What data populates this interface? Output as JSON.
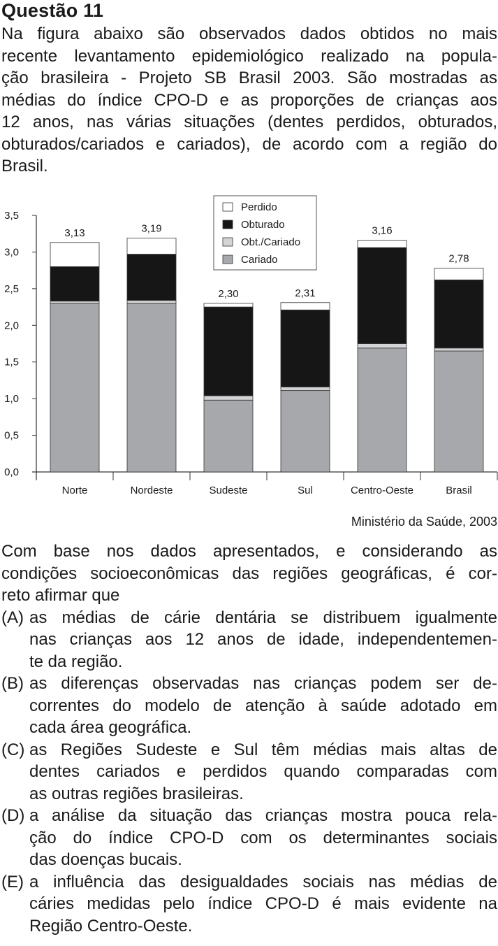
{
  "question_title": "Questão  11",
  "intro_lines": [
    "Na figura abaixo são observados dados obtidos no mais",
    "recente levantamento epidemiológico realizado na popula-",
    "ção brasileira - Projeto SB Brasil 2003. São mostradas as",
    "médias do índice CPO-D e as proporções de crianças aos",
    "12 anos, nas várias situações (dentes perdidos, obturados,",
    "obturados/cariados e cariados), de acordo com a região do",
    "Brasil."
  ],
  "chart_data": {
    "type": "bar",
    "stacked": true,
    "categories": [
      "Norte",
      "Nordeste",
      "Sudeste",
      "Sul",
      "Centro-Oeste",
      "Brasil"
    ],
    "series": [
      {
        "name": "Cariado",
        "values": [
          2.3,
          2.3,
          0.98,
          1.11,
          1.69,
          1.65
        ],
        "color": "#a7a8ab"
      },
      {
        "name": "Obt./Cariado",
        "values": [
          0.03,
          0.04,
          0.06,
          0.05,
          0.06,
          0.04
        ],
        "color": "#d3d4d6"
      },
      {
        "name": "Obturado",
        "values": [
          0.47,
          0.63,
          1.21,
          1.05,
          1.31,
          0.93
        ],
        "color": "#161616"
      },
      {
        "name": "Perdido",
        "values": [
          0.33,
          0.22,
          0.05,
          0.1,
          0.1,
          0.16
        ],
        "color": "#ffffff"
      }
    ],
    "totals": [
      "3,13",
      "3,19",
      "2,30",
      "2,31",
      "3,16",
      "2,78"
    ],
    "y_ticks": [
      "0,0",
      "0,5",
      "1,0",
      "1,5",
      "2,0",
      "2,5",
      "3,0",
      "3,5"
    ],
    "ylim": [
      0,
      3.5
    ],
    "legend_position": "top",
    "legend_order": [
      "Perdido",
      "Obturado",
      "Obt./Cariado",
      "Cariado"
    ],
    "grid": false
  },
  "source": "Ministério da Saúde, 2003",
  "question_lines": [
    "Com base nos dados apresentados, e considerando as",
    "condições socioeconômicas das regiões geográficas, é cor-",
    "reto afirmar que"
  ],
  "options": [
    {
      "letter": "(A)",
      "lines": [
        "as médias de cárie dentária se distribuem igualmente",
        "nas crianças aos 12 anos de idade, independentemen-",
        "te da região."
      ]
    },
    {
      "letter": "(B)",
      "lines": [
        "as diferenças observadas nas crianças podem ser de-",
        "correntes do modelo de atenção à saúde adotado em",
        "cada área geográfica."
      ]
    },
    {
      "letter": "(C)",
      "lines": [
        "as Regiões Sudeste e Sul têm médias mais altas de",
        "dentes cariados e perdidos quando comparadas com",
        "as outras regiões brasileiras."
      ]
    },
    {
      "letter": "(D)",
      "lines": [
        "a análise da situação das crianças mostra pouca rela-",
        "ção do índice CPO-D com os determinantes sociais",
        "das doenças bucais."
      ]
    },
    {
      "letter": "(E)",
      "lines": [
        "a influência das desigualdades sociais nas médias de",
        "cáries medidas pelo índice CPO-D é mais evidente na",
        "Região Centro-Oeste."
      ]
    }
  ]
}
